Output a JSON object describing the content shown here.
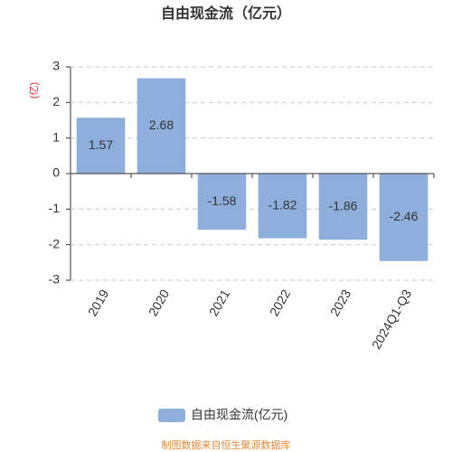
{
  "chart_data": {
    "type": "bar",
    "title": "自由现金流（亿元）",
    "y_label": "(亿)",
    "categories": [
      "2019",
      "2020",
      "2021",
      "2022",
      "2023",
      "2024Q1-Q3"
    ],
    "series": [
      {
        "name": "自由现金流(亿元)",
        "color": "#8eaedc",
        "values": [
          1.57,
          2.68,
          -1.58,
          -1.82,
          -1.86,
          -2.46
        ]
      }
    ],
    "ylim": [
      -3,
      3
    ],
    "yticks": [
      -3,
      -2,
      -1,
      0,
      1,
      2,
      3
    ],
    "grid": true,
    "source": "制图数据来自恒生聚源数据库"
  }
}
